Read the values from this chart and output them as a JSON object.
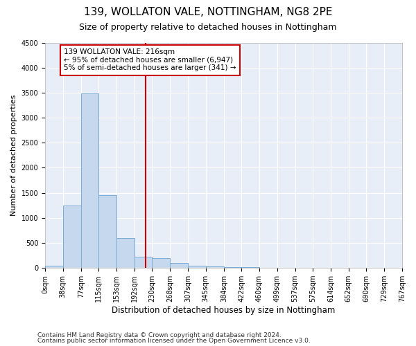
{
  "title1": "139, WOLLATON VALE, NOTTINGHAM, NG8 2PE",
  "title2": "Size of property relative to detached houses in Nottingham",
  "xlabel": "Distribution of detached houses by size in Nottingham",
  "ylabel": "Number of detached properties",
  "bin_edges": [
    0,
    38,
    77,
    115,
    153,
    192,
    230,
    268,
    307,
    345,
    384,
    422,
    460,
    499,
    537,
    575,
    614,
    652,
    690,
    729,
    767
  ],
  "bar_heights": [
    50,
    1250,
    3480,
    1450,
    600,
    230,
    200,
    100,
    50,
    30,
    20,
    10,
    8,
    5,
    3,
    2,
    1,
    1,
    0,
    1
  ],
  "bar_color": "#c5d8ee",
  "bar_edge_color": "#7aacd4",
  "vline_x": 216,
  "vline_color": "#cc0000",
  "ylim": [
    0,
    4500
  ],
  "annotation_text": "139 WOLLATON VALE: 216sqm\n← 95% of detached houses are smaller (6,947)\n5% of semi-detached houses are larger (341) →",
  "annotation_box_color": "#cc0000",
  "footer1": "Contains HM Land Registry data © Crown copyright and database right 2024.",
  "footer2": "Contains public sector information licensed under the Open Government Licence v3.0.",
  "background_color": "#e8eef7",
  "grid_color": "#ffffff",
  "title1_fontsize": 11,
  "title2_fontsize": 9,
  "tick_fontsize": 7,
  "ylabel_fontsize": 8,
  "xlabel_fontsize": 8.5,
  "footer_fontsize": 6.5,
  "annotation_fontsize": 7.5
}
